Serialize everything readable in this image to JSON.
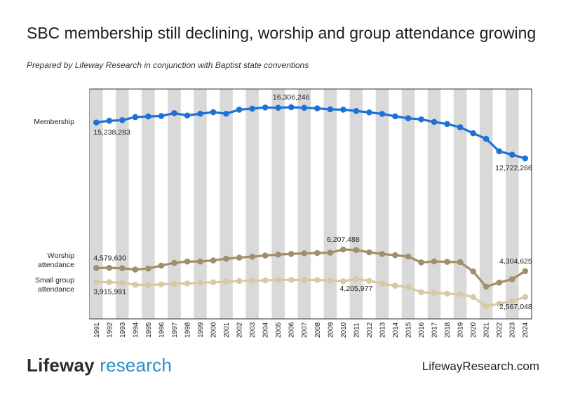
{
  "title": "SBC membership still declining, worship and group attendance growing",
  "subtitle": "Prepared by Lifeway Research in conjunction with Baptist state conventions",
  "footer": {
    "logo_part1": "Lifeway",
    "logo_part2": "research",
    "website": "LifewayResearch.com"
  },
  "chart_data": {
    "type": "line",
    "title": "SBC membership still declining, worship and group attendance growing",
    "categories": [
      "1991",
      "1992",
      "1993",
      "1994",
      "1995",
      "1996",
      "1997",
      "1998",
      "1999",
      "2000",
      "2001",
      "2002",
      "2003",
      "2004",
      "2005",
      "2006",
      "2007",
      "2008",
      "2009",
      "2010",
      "2011",
      "2012",
      "2013",
      "2014",
      "2015",
      "2016",
      "2017",
      "2018",
      "2019",
      "2020",
      "2021",
      "2022",
      "2023",
      "2024"
    ],
    "series": [
      {
        "name": "Membership",
        "color": "#1e72d6",
        "values": [
          15238283,
          15358866,
          15398642,
          15614060,
          15663296,
          15691964,
          15891514,
          15729356,
          15851756,
          15960308,
          15852122,
          16137736,
          16206718,
          16287494,
          16270315,
          16306246,
          16266920,
          16228438,
          16160088,
          16136044,
          16047283,
          15944772,
          15840148,
          15668920,
          15537563,
          15458763,
          15276798,
          15134233,
          14901576,
          14484644,
          14089947,
          13223122,
          12981414,
          12722266
        ],
        "labels": [
          {
            "index": 0,
            "text": "15,238,283",
            "pos": "below"
          },
          {
            "index": 15,
            "text": "16,306,246",
            "pos": "above"
          },
          {
            "index": 33,
            "text": "12,722,266",
            "pos": "below"
          }
        ]
      },
      {
        "name": "Worship attendance",
        "label_lines": [
          "Worship",
          "attendance"
        ],
        "color": "#a08f68",
        "values": [
          4579630,
          4595000,
          4560000,
          4445000,
          4530000,
          4790000,
          5030000,
          5150000,
          5150000,
          5250000,
          5400000,
          5490000,
          5580000,
          5680000,
          5760000,
          5820000,
          5870000,
          5900000,
          5930000,
          6207488,
          6160000,
          5960000,
          5820000,
          5710000,
          5590000,
          5070000,
          5160000,
          5120000,
          5100000,
          4280000,
          2940000,
          3300000,
          3590000,
          4304625
        ],
        "labels": [
          {
            "index": 0,
            "text": "4,579,630",
            "pos": "above"
          },
          {
            "index": 19,
            "text": "6,207,488",
            "pos": "above"
          },
          {
            "index": 33,
            "text": "4,304,625",
            "pos": "above-left"
          }
        ]
      },
      {
        "name": "Small group attendance",
        "label_lines": [
          "Small group",
          "attendance"
        ],
        "color": "#d8c9a6",
        "values": [
          3915991,
          3920000,
          3860000,
          3680000,
          3650000,
          3720000,
          3770000,
          3800000,
          3860000,
          3900000,
          3960000,
          4020000,
          4050000,
          4080000,
          4110000,
          4120000,
          4120000,
          4110000,
          4060000,
          4000000,
          4205977,
          4040000,
          3780000,
          3590000,
          3460000,
          3000000,
          2940000,
          2870000,
          2830000,
          2570000,
          1730000,
          1960000,
          2200000,
          2567048
        ],
        "labels": [
          {
            "index": 0,
            "text": "3,915,991",
            "pos": "below"
          },
          {
            "index": 20,
            "text": "4,205,977",
            "pos": "below"
          },
          {
            "index": 33,
            "text": "2,567,048",
            "pos": "below-left"
          }
        ]
      }
    ],
    "grid": "alternating vertical bands",
    "band_color": "#d9d9d9",
    "legend": "left labels"
  }
}
